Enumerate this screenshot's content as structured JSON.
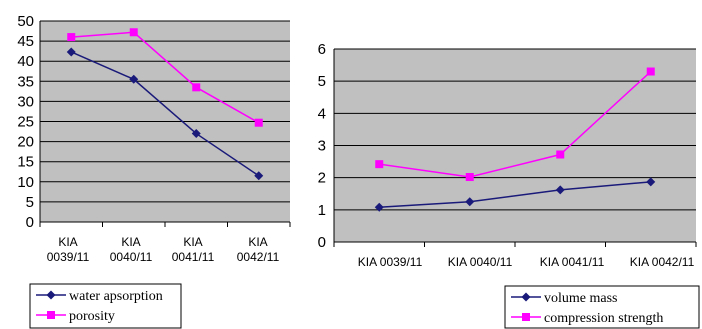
{
  "colors": {
    "series_navy": "#1a1a7a",
    "series_magenta": "#ff00ff",
    "plot_background": "#c0c0c0"
  },
  "chart_data": [
    {
      "type": "line",
      "title": "",
      "xlabel": "",
      "ylabel": "",
      "categories": [
        [
          "KIA",
          "0039/11"
        ],
        [
          "KIA",
          "0040/11"
        ],
        [
          "KIA",
          "0041/11"
        ],
        [
          "KIA",
          "0042/11"
        ]
      ],
      "ylim": [
        0,
        50
      ],
      "yticks": [
        "0",
        "5",
        "10",
        "15",
        "20",
        "25",
        "30",
        "35",
        "40",
        "45",
        "50"
      ],
      "grid": true,
      "legend_position": "bottom-left",
      "series": [
        {
          "name": "water apsorption",
          "marker": "diamond",
          "color": "#1a1a7a",
          "values": [
            42.3,
            35.5,
            22.0,
            11.5
          ]
        },
        {
          "name": "porosity",
          "marker": "square",
          "color": "#ff00ff",
          "values": [
            46.0,
            47.2,
            33.5,
            24.7
          ]
        }
      ]
    },
    {
      "type": "line",
      "title": "",
      "xlabel": "",
      "ylabel": "",
      "categories": [
        [
          "KIA 0039/11"
        ],
        [
          "KIA 0040/11"
        ],
        [
          "KIA 0041/11"
        ],
        [
          "KIA 0042/11"
        ]
      ],
      "ylim": [
        0,
        6
      ],
      "yticks": [
        "0",
        "1",
        "2",
        "3",
        "4",
        "5",
        "6"
      ],
      "grid": true,
      "legend_position": "bottom-right",
      "series": [
        {
          "name": "volume mass",
          "marker": "diamond",
          "color": "#1a1a7a",
          "values": [
            1.08,
            1.25,
            1.62,
            1.87
          ]
        },
        {
          "name": "compression strength",
          "marker": "square",
          "color": "#ff00ff",
          "values": [
            2.42,
            2.02,
            2.72,
            5.3
          ]
        }
      ]
    }
  ]
}
